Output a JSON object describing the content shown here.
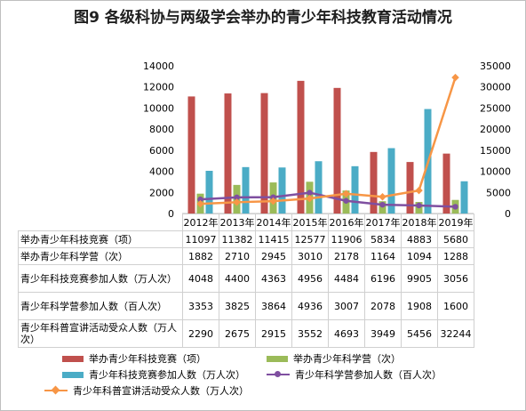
{
  "title": "图9  各级科协与两级学会举办的青少年科技教育活动情况",
  "chart_data": {
    "type": "bar",
    "categories": [
      "2012年",
      "2013年",
      "2014年",
      "2015年",
      "2016年",
      "2017年",
      "2018年",
      "2019年"
    ],
    "y_left": {
      "ylim": [
        0,
        14000
      ],
      "ticks": [
        "0",
        "2000",
        "4000",
        "6000",
        "8000",
        "10000",
        "12000",
        "14000"
      ]
    },
    "y_right": {
      "ylim": [
        0,
        35000
      ],
      "ticks": [
        "0",
        "5000",
        "10000",
        "15000",
        "20000",
        "25000",
        "30000",
        "35000"
      ]
    },
    "series": [
      {
        "name": "举办青少年科技竞赛（项）",
        "type": "bar",
        "axis": "left",
        "color": "#c0504d",
        "values": [
          11097,
          11382,
          11415,
          12577,
          11906,
          5834,
          4883,
          5680
        ]
      },
      {
        "name": "举办青少年科学营（次）",
        "type": "bar",
        "axis": "left",
        "color": "#9bbb59",
        "values": [
          1882,
          2710,
          2945,
          3010,
          2178,
          1164,
          1094,
          1288
        ]
      },
      {
        "name": "青少年科技竞赛参加人数（万人次）",
        "type": "bar",
        "axis": "left",
        "color": "#4bacc6",
        "values": [
          4048,
          4400,
          4363,
          4956,
          4484,
          6196,
          9905,
          3056
        ]
      },
      {
        "name": "青少年科学营参加人数（百人次）",
        "type": "line",
        "axis": "right",
        "color": "#7f4fa0",
        "values": [
          3353,
          3825,
          3864,
          4936,
          3007,
          2078,
          1908,
          1600
        ]
      },
      {
        "name": "青少年科普宣讲活动受众人数（万人次）",
        "type": "line",
        "axis": "right",
        "color": "#f79646",
        "values": [
          2290,
          2675,
          2915,
          3552,
          4693,
          3949,
          5456,
          32244
        ]
      }
    ],
    "table_rows": [
      {
        "label": "举办青少年科技竞赛（项）",
        "cells": [
          "11097",
          "11382",
          "11415",
          "12577",
          "11906",
          "5834",
          "4883",
          "5680"
        ]
      },
      {
        "label": "举办青少年科学营（次）",
        "cells": [
          "1882",
          "2710",
          "2945",
          "3010",
          "2178",
          "1164",
          "1094",
          "1288"
        ]
      },
      {
        "label": "青少年科技竞赛参加人数（万人次）",
        "cells": [
          "4048",
          "4400",
          "4363",
          "4956",
          "4484",
          "6196",
          "9905",
          "3056"
        ]
      },
      {
        "label": "青少年科学营参加人数（百人次）",
        "cells": [
          "3353",
          "3825",
          "3864",
          "4936",
          "3007",
          "2078",
          "1908",
          "1600"
        ]
      },
      {
        "label": "青少年科普宣讲活动受众人数（万人次）",
        "cells": [
          "2290",
          "2675",
          "2915",
          "3552",
          "4693",
          "3949",
          "5456",
          "32244"
        ]
      }
    ],
    "legend_position": "bottom",
    "grid": false
  }
}
